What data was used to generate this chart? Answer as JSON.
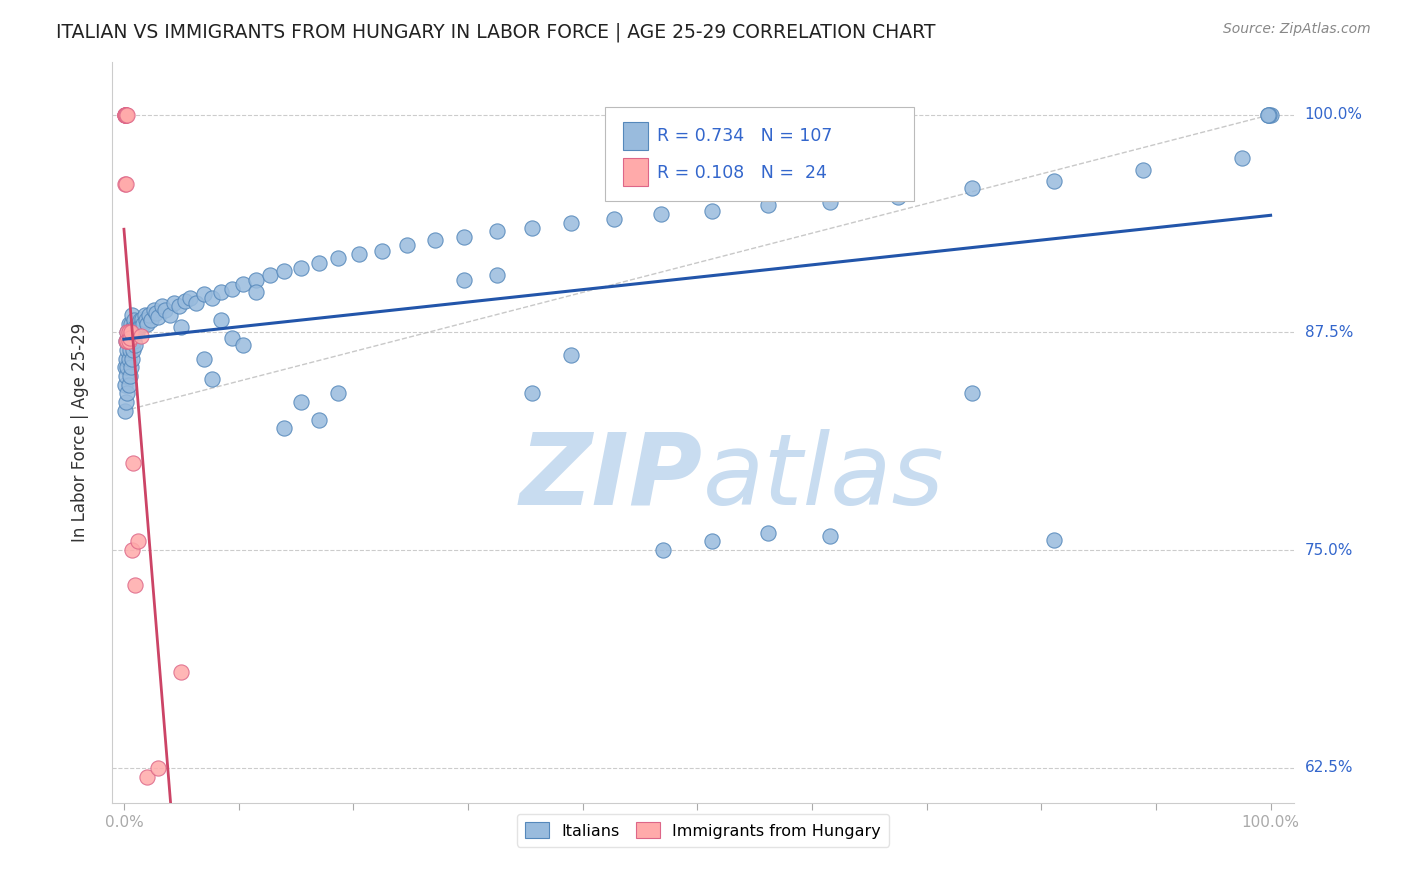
{
  "title": "ITALIAN VS IMMIGRANTS FROM HUNGARY IN LABOR FORCE | AGE 25-29 CORRELATION CHART",
  "source": "Source: ZipAtlas.com",
  "ylabel": "In Labor Force | Age 25-29",
  "xlim": [
    -0.01,
    1.02
  ],
  "ylim": [
    0.605,
    1.03
  ],
  "yticks": [
    0.625,
    0.75,
    0.875,
    1.0
  ],
  "ytick_labels": [
    "62.5%",
    "75.0%",
    "87.5%",
    "100.0%"
  ],
  "xticks": [
    0.0,
    0.1,
    0.2,
    0.3,
    0.4,
    0.5,
    0.6,
    0.7,
    0.8,
    0.9,
    1.0
  ],
  "xtick_labels": [
    "0.0%",
    "",
    "",
    "",
    "",
    "",
    "",
    "",
    "",
    "",
    "100.0%"
  ],
  "italian_R": 0.734,
  "italian_N": 107,
  "hungary_R": 0.108,
  "hungary_N": 24,
  "blue_scatter_color": "#99BBDD",
  "blue_scatter_edge": "#5588BB",
  "pink_scatter_color": "#FFAAAA",
  "pink_scatter_edge": "#DD6688",
  "blue_line_color": "#2255AA",
  "pink_line_color": "#CC4466",
  "ref_line_color": "#BBBBBB",
  "watermark_color": "#DDEEFF",
  "background_color": "#FFFFFF",
  "italian_x": [
    0.001,
    0.001,
    0.001,
    0.002,
    0.002,
    0.002,
    0.002,
    0.003,
    0.003,
    0.003,
    0.003,
    0.004,
    0.004,
    0.004,
    0.004,
    0.005,
    0.005,
    0.005,
    0.006,
    0.006,
    0.006,
    0.007,
    0.007,
    0.007,
    0.008,
    0.008,
    0.009,
    0.009,
    0.01,
    0.01,
    0.011,
    0.012,
    0.013,
    0.014,
    0.015,
    0.016,
    0.017,
    0.018,
    0.019,
    0.02,
    0.022,
    0.024,
    0.026,
    0.028,
    0.03,
    0.033,
    0.036,
    0.04,
    0.044,
    0.048,
    0.053,
    0.058,
    0.063,
    0.07,
    0.077,
    0.085,
    0.094,
    0.104,
    0.115,
    0.127,
    0.14,
    0.154,
    0.17,
    0.187,
    0.205,
    0.225,
    0.247,
    0.271,
    0.297,
    0.325,
    0.356,
    0.39,
    0.427,
    0.468,
    0.513,
    0.562,
    0.616,
    0.675,
    0.74,
    0.811,
    0.889,
    0.975,
    0.998,
    1.0,
    0.999,
    0.998,
    0.74,
    0.811,
    0.47,
    0.513,
    0.562,
    0.616,
    0.297,
    0.325,
    0.356,
    0.39,
    0.14,
    0.154,
    0.17,
    0.187,
    0.094,
    0.104,
    0.115,
    0.07,
    0.077,
    0.085,
    0.05
  ],
  "italian_y": [
    0.83,
    0.845,
    0.855,
    0.835,
    0.85,
    0.86,
    0.87,
    0.84,
    0.855,
    0.865,
    0.875,
    0.845,
    0.86,
    0.87,
    0.88,
    0.85,
    0.865,
    0.875,
    0.855,
    0.87,
    0.88,
    0.86,
    0.872,
    0.885,
    0.865,
    0.878,
    0.87,
    0.882,
    0.868,
    0.878,
    0.875,
    0.88,
    0.878,
    0.882,
    0.879,
    0.883,
    0.88,
    0.885,
    0.882,
    0.88,
    0.885,
    0.882,
    0.888,
    0.886,
    0.884,
    0.89,
    0.888,
    0.885,
    0.892,
    0.89,
    0.893,
    0.895,
    0.892,
    0.897,
    0.895,
    0.898,
    0.9,
    0.903,
    0.905,
    0.908,
    0.91,
    0.912,
    0.915,
    0.918,
    0.92,
    0.922,
    0.925,
    0.928,
    0.93,
    0.933,
    0.935,
    0.938,
    0.94,
    0.943,
    0.945,
    0.948,
    0.95,
    0.953,
    0.958,
    0.962,
    0.968,
    0.975,
    1.0,
    1.0,
    1.0,
    1.0,
    0.84,
    0.756,
    0.75,
    0.755,
    0.76,
    0.758,
    0.905,
    0.908,
    0.84,
    0.862,
    0.82,
    0.835,
    0.825,
    0.84,
    0.872,
    0.868,
    0.898,
    0.86,
    0.848,
    0.882,
    0.878
  ],
  "hungary_x": [
    0.001,
    0.001,
    0.001,
    0.001,
    0.001,
    0.002,
    0.002,
    0.002,
    0.002,
    0.003,
    0.003,
    0.003,
    0.004,
    0.004,
    0.005,
    0.006,
    0.007,
    0.008,
    0.01,
    0.012,
    0.015,
    0.02,
    0.03,
    0.05
  ],
  "hungary_y": [
    1.0,
    1.0,
    1.0,
    1.0,
    0.96,
    1.0,
    1.0,
    0.96,
    0.87,
    1.0,
    0.875,
    0.87,
    0.875,
    0.87,
    0.872,
    0.875,
    0.75,
    0.8,
    0.73,
    0.755,
    0.873,
    0.62,
    0.625,
    0.68
  ]
}
